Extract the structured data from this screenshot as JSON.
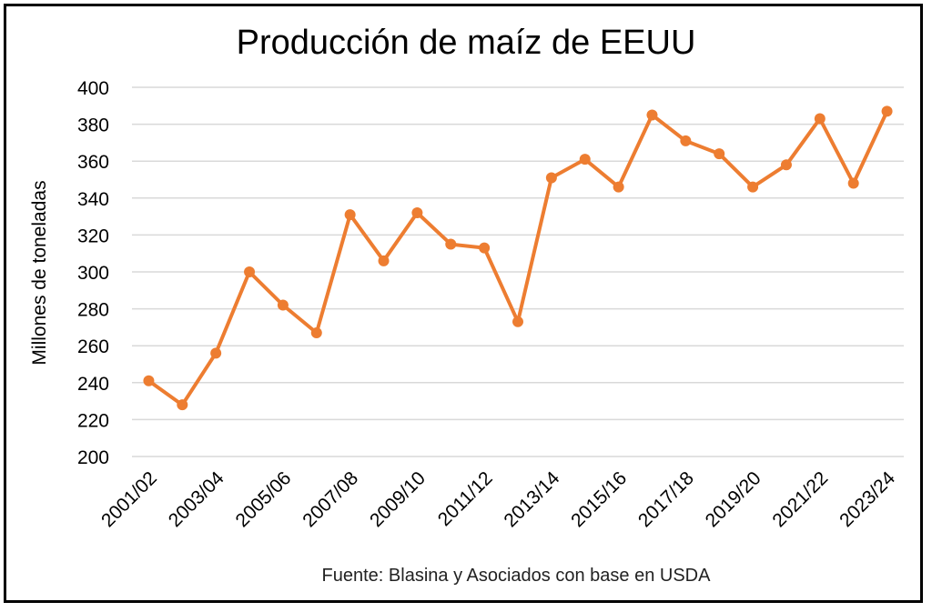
{
  "chart_data": {
    "type": "line",
    "title": "Producción de maíz de EEUU",
    "ylabel": "Millones de toneladas",
    "xlabel": "",
    "source": "Fuente: Blasina y Asociados con base en USDA",
    "ylim": [
      200,
      400
    ],
    "yticks": [
      200,
      220,
      240,
      260,
      280,
      300,
      320,
      340,
      360,
      380,
      400
    ],
    "grid": true,
    "categories": [
      "2001/02",
      "2002/03",
      "2003/04",
      "2004/05",
      "2005/06",
      "2006/07",
      "2007/08",
      "2008/09",
      "2009/10",
      "2010/11",
      "2011/12",
      "2012/13",
      "2013/14",
      "2014/15",
      "2015/16",
      "2016/17",
      "2017/18",
      "2018/19",
      "2019/20",
      "2020/21",
      "2021/22",
      "2022/23",
      "2023/24"
    ],
    "xtick_labels": [
      "2001/02",
      "2003/04",
      "2005/06",
      "2007/08",
      "2009/10",
      "2011/12",
      "2013/14",
      "2015/16",
      "2017/18",
      "2019/20",
      "2021/22",
      "2023/24"
    ],
    "series": [
      {
        "values": [
          241,
          228,
          256,
          300,
          282,
          267,
          331,
          306,
          332,
          315,
          313,
          273,
          351,
          361,
          346,
          385,
          371,
          364,
          346,
          358,
          383,
          348,
          387
        ],
        "color": "#ED7D31"
      }
    ]
  }
}
